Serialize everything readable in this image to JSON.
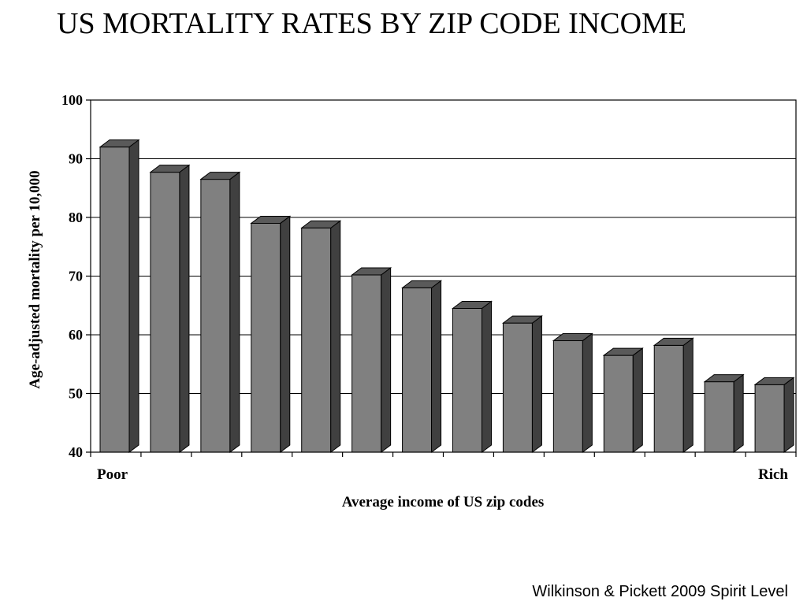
{
  "title": "US MORTALITY RATES BY ZIP CODE INCOME",
  "credit": "Wilkinson & Pickett 2009 Spirit Level",
  "chart_data": {
    "type": "bar",
    "title": "US MORTALITY RATES BY ZIP CODE INCOME",
    "xlabel": "Average income of US zip codes",
    "ylabel": "Age-adjusted mortality per 10,000",
    "x_end_labels": {
      "left": "Poor",
      "right": "Rich"
    },
    "values": [
      92,
      87.7,
      86.5,
      79,
      78.2,
      70.2,
      68,
      64.5,
      62,
      59,
      56.5,
      58.2,
      52,
      51.5
    ],
    "ylim": [
      40,
      100
    ],
    "yticks": [
      40,
      50,
      60,
      70,
      80,
      90,
      100
    ],
    "grid": true,
    "style": "3d-bars",
    "colors": {
      "bar_front": "#808080",
      "bar_side": "#404040",
      "bar_top": "#5a5a5a"
    }
  }
}
